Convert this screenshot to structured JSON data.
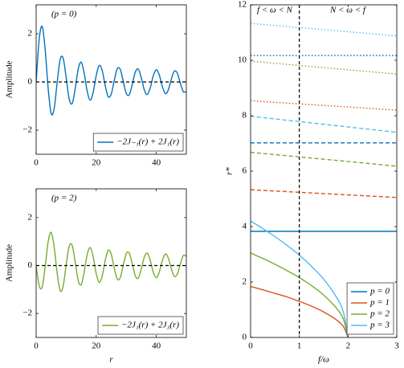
{
  "chart_data": [
    {
      "type": "line",
      "xlim": [
        0,
        50
      ],
      "ylim": [
        -3,
        3.2
      ],
      "xticks": [
        0,
        20,
        40
      ],
      "yticks": [
        {
          "value": -2,
          "label": "−2"
        },
        0,
        2
      ],
      "ylabel": "Amplitude",
      "hline": 0,
      "legend": "lower right",
      "annotations": [
        {
          "text": "(p = 0)"
        }
      ],
      "x": [
        0,
        1,
        2,
        3,
        4,
        5,
        6,
        7,
        8,
        9,
        10,
        11,
        12,
        13,
        14,
        15,
        16,
        17,
        18,
        19,
        20,
        21,
        22,
        23,
        24,
        25,
        26,
        27,
        28,
        29,
        30,
        31,
        32,
        33,
        34,
        35,
        36,
        37,
        38,
        39,
        40,
        41,
        42,
        43,
        44,
        45,
        46,
        47,
        48,
        49,
        50
      ],
      "series": [
        {
          "name": "−2J₋₁(r) + 2J₁(r)",
          "color": "#0072BD",
          "style": "solid",
          "values": [
            0,
            1.76,
            2.307,
            1.356,
            -0.264,
            -1.31,
            -1.107,
            -0.019,
            0.938,
            0.981,
            0.174,
            -0.707,
            -0.894,
            -0.281,
            0.534,
            0.82,
            0.362,
            -0.391,
            -0.752,
            -0.423,
            0.267,
            0.684,
            0.468,
            -0.158,
            -0.616,
            -0.501,
            0.061,
            0.547,
            0.522,
            0.027,
            -0.475,
            -0.532,
            -0.106,
            0.403,
            0.532,
            0.175,
            -0.33,
            -0.522,
            -0.236,
            0.257,
            0.504,
            0.288,
            -0.184,
            -0.478,
            -0.331,
            0.114,
            0.446,
            0.364,
            -0.046,
            -0.407,
            -0.389
          ]
        }
      ]
    },
    {
      "type": "line",
      "xlim": [
        0,
        50
      ],
      "ylim": [
        -3,
        3.2
      ],
      "xticks": [
        0,
        20,
        40
      ],
      "yticks": [
        {
          "value": -2,
          "label": "−2"
        },
        0,
        2
      ],
      "ylabel": "Amplitude",
      "xlabel": "r",
      "hline": 0,
      "legend": "lower right",
      "annotations": [
        {
          "text": "(p = 2)"
        }
      ],
      "x": [
        0,
        1,
        2,
        3,
        4,
        5,
        6,
        7,
        8,
        9,
        10,
        11,
        12,
        13,
        14,
        15,
        16,
        17,
        18,
        19,
        20,
        21,
        22,
        23,
        24,
        25,
        26,
        27,
        28,
        29,
        30,
        31,
        32,
        33,
        34,
        35,
        36,
        37,
        38,
        39,
        40,
        41,
        42,
        43,
        44,
        45,
        46,
        47,
        48,
        49,
        50
      ],
      "series": [
        {
          "name": "−2J₁(r) + 2J₃(r)",
          "color": "#77AC30",
          "style": "solid",
          "values": [
            0,
            -0.841,
            -0.896,
            -0.06,
            0.992,
            1.385,
            0.783,
            -0.326,
            -1.051,
            -0.852,
            0.03,
            0.808,
            0.837,
            0.147,
            -0.62,
            -0.798,
            -0.268,
            0.465,
            0.749,
            0.356,
            -0.331,
            -0.698,
            -0.424,
            0.215,
            0.635,
            0.47,
            -0.109,
            -0.568,
            -0.501,
            0.014,
            0.498,
            0.518,
            0.071,
            -0.426,
            -0.524,
            -0.146,
            0.353,
            0.519,
            0.212,
            -0.28,
            -0.506,
            -0.268,
            0.206,
            0.483,
            0.315,
            -0.134,
            -0.452,
            -0.352,
            0.065,
            0.415,
            0.38
          ]
        }
      ]
    },
    {
      "type": "line",
      "xlim": [
        0,
        3
      ],
      "ylim": [
        0,
        12
      ],
      "xticks": [
        0,
        1,
        2,
        3
      ],
      "yticks": [
        0,
        2,
        4,
        6,
        8,
        10,
        12
      ],
      "ylabel": "r*",
      "xlabel": "f/ω",
      "vline": 1,
      "legend": "lower right",
      "annotations": [
        {
          "text": "f < ω < N"
        },
        {
          "text": "N < ω < f"
        }
      ],
      "series": [
        {
          "name": "p = 0",
          "color": "#0072BD",
          "lines": [
            {
              "style": "solid",
              "x": [
                0,
                3
              ],
              "values": [
                3.83,
                3.83
              ]
            },
            {
              "style": "dashed",
              "x": [
                0,
                3
              ],
              "values": [
                7.02,
                7.02
              ]
            },
            {
              "style": "dotted",
              "x": [
                0,
                3
              ],
              "values": [
                10.17,
                10.17
              ]
            }
          ]
        },
        {
          "name": "p = 1",
          "color": "#D95319",
          "lines": [
            {
              "style": "solid",
              "x": [
                0,
                0.25,
                0.5,
                0.75,
                1,
                1.25,
                1.5,
                1.75,
                1.9,
                2
              ],
              "values": [
                1.84,
                1.72,
                1.59,
                1.46,
                1.3,
                1.13,
                0.92,
                0.65,
                0.41,
                0
              ]
            },
            {
              "style": "dashed",
              "x": [
                0,
                3
              ],
              "values": [
                5.33,
                5.05
              ]
            },
            {
              "style": "dotted",
              "x": [
                0,
                3
              ],
              "values": [
                8.54,
                8.2
              ]
            }
          ]
        },
        {
          "name": "p = 2",
          "color": "#77AC30",
          "lines": [
            {
              "style": "solid",
              "x": [
                0,
                0.25,
                0.5,
                0.75,
                1,
                1.25,
                1.5,
                1.75,
                1.9,
                2
              ],
              "values": [
                3.05,
                2.85,
                2.64,
                2.41,
                2.16,
                1.87,
                1.53,
                1.08,
                0.68,
                0
              ]
            },
            {
              "style": "dashed",
              "x": [
                0,
                3
              ],
              "values": [
                6.68,
                6.18
              ]
            },
            {
              "style": "dotted",
              "x": [
                0,
                3
              ],
              "values": [
                9.97,
                9.5
              ]
            }
          ]
        },
        {
          "name": "p = 3",
          "color": "#4DBEEE",
          "lines": [
            {
              "style": "solid",
              "x": [
                0,
                0.25,
                0.5,
                0.75,
                1,
                1.25,
                1.5,
                1.75,
                1.9,
                2
              ],
              "values": [
                4.2,
                3.93,
                3.64,
                3.32,
                2.97,
                2.57,
                2.1,
                1.49,
                0.94,
                0
              ]
            },
            {
              "style": "dashed",
              "x": [
                0,
                3
              ],
              "values": [
                7.98,
                7.4
              ]
            },
            {
              "style": "dotted",
              "x": [
                0,
                3
              ],
              "values": [
                11.33,
                10.88
              ]
            }
          ]
        }
      ]
    }
  ]
}
